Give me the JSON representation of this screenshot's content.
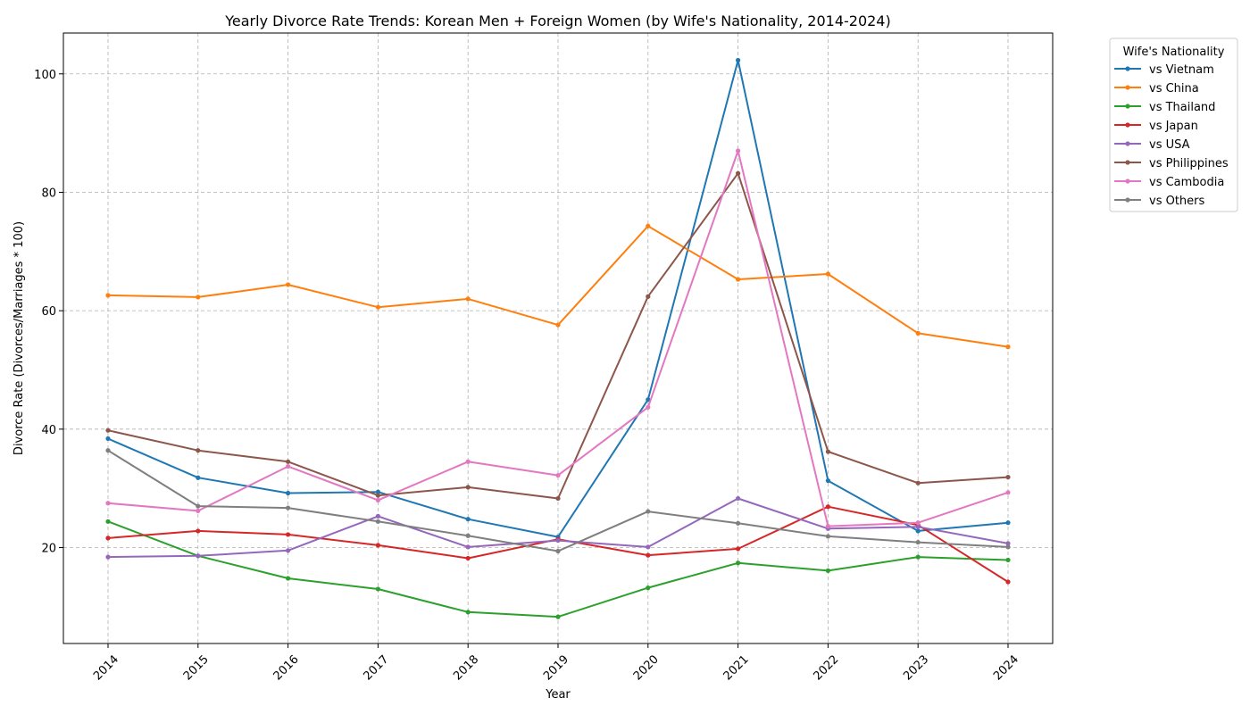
{
  "chart_data": {
    "type": "line",
    "title": "Yearly Divorce Rate Trends: Korean Men + Foreign Women (by Wife's Nationality, 2014-2024)",
    "xlabel": "Year",
    "ylabel": "Divorce Rate (Divorces/Marriages * 100)",
    "x": [
      "2014",
      "2015",
      "2016",
      "2017",
      "2018",
      "2019",
      "2020",
      "2021",
      "2022",
      "2023",
      "2024"
    ],
    "ylim": [
      3.8,
      106.9
    ],
    "yticks": [
      "20",
      "40",
      "60",
      "80",
      "100"
    ],
    "grid": true,
    "legend": {
      "title": "Wife's Nationality",
      "placement": "outside-top-right"
    },
    "series": [
      {
        "name": "vs Vietnam",
        "color": "#1f77b4",
        "values": [
          38.4,
          31.8,
          29.2,
          29.4,
          24.8,
          21.8,
          45.0,
          102.3,
          31.3,
          22.8,
          24.2
        ]
      },
      {
        "name": "vs China",
        "color": "#ff7f0e",
        "values": [
          62.6,
          62.3,
          64.4,
          60.6,
          62.0,
          57.6,
          74.3,
          65.3,
          66.2,
          56.2,
          53.9
        ]
      },
      {
        "name": "vs Thailand",
        "color": "#2ca02c",
        "values": [
          24.4,
          18.6,
          14.8,
          13.0,
          9.1,
          8.3,
          13.2,
          17.4,
          16.1,
          18.4,
          17.9
        ]
      },
      {
        "name": "vs Japan",
        "color": "#d62728",
        "values": [
          21.6,
          22.8,
          22.2,
          20.4,
          18.2,
          21.4,
          18.7,
          19.8,
          26.9,
          23.8,
          14.2
        ]
      },
      {
        "name": "vs USA",
        "color": "#9467bd",
        "values": [
          18.4,
          18.6,
          19.5,
          25.3,
          20.1,
          21.2,
          20.1,
          28.3,
          23.2,
          23.5,
          20.7
        ]
      },
      {
        "name": "vs Philippines",
        "color": "#8c564b",
        "values": [
          39.8,
          36.4,
          34.5,
          28.8,
          30.2,
          28.3,
          62.4,
          83.2,
          36.2,
          30.9,
          31.9
        ]
      },
      {
        "name": "vs Cambodia",
        "color": "#e377c2",
        "values": [
          27.5,
          26.2,
          33.7,
          28.0,
          34.5,
          32.2,
          43.7,
          87.0,
          23.6,
          24.2,
          29.3
        ]
      },
      {
        "name": "vs Others",
        "color": "#7f7f7f",
        "values": [
          36.4,
          27.0,
          26.7,
          24.4,
          22.0,
          19.4,
          26.1,
          24.1,
          21.9,
          20.9,
          20.1
        ]
      }
    ]
  }
}
